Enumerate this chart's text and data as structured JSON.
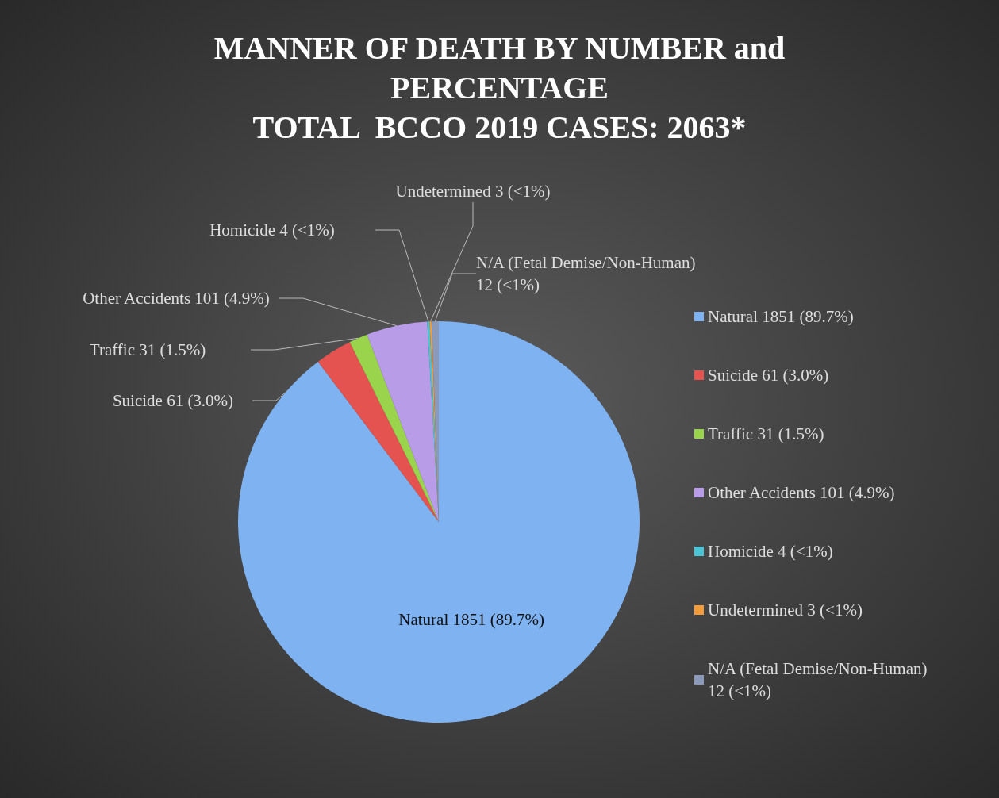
{
  "chart_data": {
    "type": "pie",
    "title": "MANNER OF DEATH BY NUMBER and\nPERCENTAGE\nTOTAL  BCCO 2019 CASES: 2063*",
    "categories": [
      "Natural",
      "Suicide",
      "Traffic",
      "Other Accidents",
      "Homicide",
      "Undetermined",
      "N/A (Fetal Demise/Non-Human)"
    ],
    "values": [
      1851,
      61,
      31,
      101,
      4,
      3,
      12
    ],
    "value_labels": [
      "1851 (89.7%)",
      "61 (3.0%)",
      "31 (1.5%)",
      "101 (4.9%)",
      "4 (<1%)",
      "3 (<1%)",
      "12 (<1%)"
    ],
    "colors": [
      "#7fb2f0",
      "#e4534f",
      "#9ad44c",
      "#b99ce8",
      "#4bc5d6",
      "#f39c3c",
      "#8a9ab8"
    ],
    "legend": "right"
  }
}
